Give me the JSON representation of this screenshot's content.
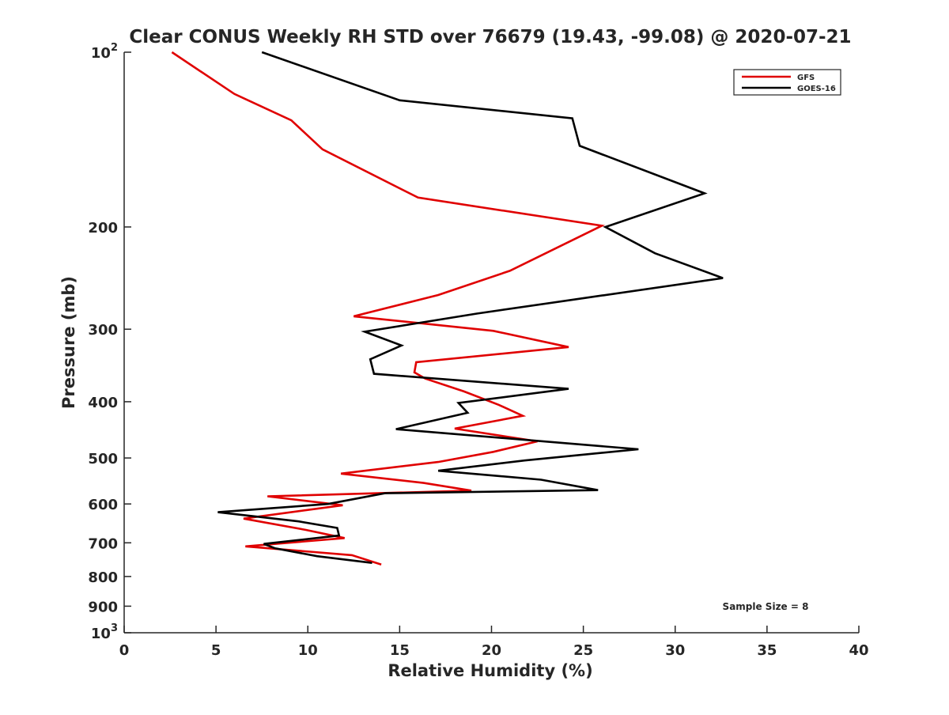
{
  "chart_data": {
    "type": "line",
    "title": "Clear CONUS Weekly RH STD over 76679 (19.43, -99.08) @ 2020-07-21",
    "xlabel": "Relative Humidity (%)",
    "ylabel": "Pressure (mb)",
    "xlim": [
      0,
      40
    ],
    "ylim": [
      100,
      1000
    ],
    "yscale": "log",
    "y_reversed": true,
    "x_ticks": [
      "0",
      "5",
      "10",
      "15",
      "20",
      "25",
      "30",
      "35",
      "40"
    ],
    "x_tick_values": [
      0,
      5,
      10,
      15,
      20,
      25,
      30,
      35,
      40
    ],
    "y_ticks": [
      {
        "value": 100,
        "label": "10",
        "sup": "2"
      },
      {
        "value": 200,
        "label": "200",
        "sup": ""
      },
      {
        "value": 300,
        "label": "300",
        "sup": ""
      },
      {
        "value": 400,
        "label": "400",
        "sup": ""
      },
      {
        "value": 500,
        "label": "500",
        "sup": ""
      },
      {
        "value": 600,
        "label": "600",
        "sup": ""
      },
      {
        "value": 700,
        "label": "700",
        "sup": ""
      },
      {
        "value": 800,
        "label": "800",
        "sup": ""
      },
      {
        "value": 900,
        "label": "900",
        "sup": ""
      },
      {
        "value": 1000,
        "label": "10",
        "sup": "3"
      }
    ],
    "legend_position": "top-right",
    "grid": false,
    "annotation": "Sample Size = 8",
    "series": [
      {
        "name": "GFS",
        "color": "#e00000",
        "points": [
          [
            2.6,
            100
          ],
          [
            6.0,
            118
          ],
          [
            9.1,
            131
          ],
          [
            10.8,
            147
          ],
          [
            16.0,
            178
          ],
          [
            26.0,
            199
          ],
          [
            21.0,
            238
          ],
          [
            17.1,
            262
          ],
          [
            12.5,
            285
          ],
          [
            20.1,
            302
          ],
          [
            24.2,
            322
          ],
          [
            15.9,
            342
          ],
          [
            15.8,
            356
          ],
          [
            16.4,
            365
          ],
          [
            18.5,
            384
          ],
          [
            20.4,
            405
          ],
          [
            21.7,
            423
          ],
          [
            18.0,
            445
          ],
          [
            22.5,
            468
          ],
          [
            20.1,
            488
          ],
          [
            17.1,
            508
          ],
          [
            11.8,
            532
          ],
          [
            16.3,
            552
          ],
          [
            18.9,
            569
          ],
          [
            7.8,
            582
          ],
          [
            11.9,
            603
          ],
          [
            6.5,
            636
          ],
          [
            9.9,
            665
          ],
          [
            12.0,
            687
          ],
          [
            6.6,
            710
          ],
          [
            12.4,
            735
          ],
          [
            14.0,
            763
          ]
        ]
      },
      {
        "name": "GOES-16",
        "color": "#000000",
        "points": [
          [
            7.5,
            100
          ],
          [
            15.0,
            121
          ],
          [
            24.4,
            130
          ],
          [
            24.8,
            145
          ],
          [
            31.6,
            175
          ],
          [
            26.2,
            200
          ],
          [
            28.9,
            222
          ],
          [
            32.6,
            245
          ],
          [
            25.1,
            265
          ],
          [
            19.2,
            282
          ],
          [
            13.1,
            303
          ],
          [
            15.1,
            320
          ],
          [
            13.4,
            338
          ],
          [
            13.6,
            358
          ],
          [
            24.2,
            380
          ],
          [
            18.2,
            402
          ],
          [
            18.7,
            418
          ],
          [
            14.8,
            446
          ],
          [
            28.0,
            483
          ],
          [
            21.8,
            505
          ],
          [
            17.1,
            526
          ],
          [
            22.7,
            545
          ],
          [
            25.8,
            568
          ],
          [
            14.2,
            575
          ],
          [
            11.1,
            600
          ],
          [
            5.1,
            620
          ],
          [
            9.5,
            643
          ],
          [
            11.6,
            660
          ],
          [
            11.7,
            680
          ],
          [
            7.6,
            703
          ],
          [
            8.2,
            715
          ],
          [
            10.5,
            738
          ],
          [
            13.5,
            758
          ]
        ]
      }
    ]
  }
}
